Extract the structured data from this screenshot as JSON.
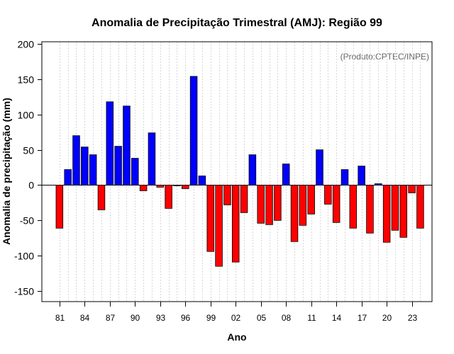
{
  "chart_data": {
    "type": "bar",
    "title": "Anomalia de Precipitação Trimestral (AMJ): Região 99",
    "xlabel": "Ano",
    "ylabel": "Anomalia de precipitação (mm)",
    "source_note": "(Produto:CPTEC/INPE)",
    "ylim": [
      -165,
      203
    ],
    "yticks": [
      -150,
      -100,
      -50,
      0,
      50,
      100,
      150,
      200
    ],
    "xlim": [
      1978.9,
      2025.4
    ],
    "xticks": [
      {
        "year": 1981,
        "label": "81"
      },
      {
        "year": 1984,
        "label": "84"
      },
      {
        "year": 1987,
        "label": "87"
      },
      {
        "year": 1990,
        "label": "90"
      },
      {
        "year": 1993,
        "label": "93"
      },
      {
        "year": 1996,
        "label": "96"
      },
      {
        "year": 1999,
        "label": "99"
      },
      {
        "year": 2002,
        "label": "02"
      },
      {
        "year": 2005,
        "label": "05"
      },
      {
        "year": 2008,
        "label": "08"
      },
      {
        "year": 2011,
        "label": "11"
      },
      {
        "year": 2014,
        "label": "14"
      },
      {
        "year": 2017,
        "label": "17"
      },
      {
        "year": 2020,
        "label": "20"
      },
      {
        "year": 2023,
        "label": "23"
      }
    ],
    "years": [
      1981,
      1982,
      1983,
      1984,
      1985,
      1986,
      1987,
      1988,
      1989,
      1990,
      1991,
      1992,
      1993,
      1994,
      1995,
      1996,
      1997,
      1998,
      1999,
      2000,
      2001,
      2002,
      2003,
      2004,
      2005,
      2006,
      2007,
      2008,
      2009,
      2010,
      2011,
      2012,
      2013,
      2014,
      2015,
      2016,
      2017,
      2018,
      2019,
      2020,
      2021,
      2022,
      2023,
      2024
    ],
    "values": [
      -61,
      22,
      70,
      54,
      43,
      -35,
      118,
      55,
      112,
      38,
      -8,
      74,
      -3,
      -33,
      -1,
      -5,
      154,
      13,
      -94,
      -115,
      -28,
      -109,
      -39,
      43,
      -54,
      -56,
      -50,
      30,
      -80,
      -57,
      -41,
      50,
      -27,
      -53,
      22,
      -61,
      27,
      -68,
      2,
      -81,
      -64,
      -74,
      -11,
      -61
    ],
    "colors": {
      "positive": "#0000ff",
      "negative": "#ff0000",
      "outline": "#000000"
    }
  }
}
